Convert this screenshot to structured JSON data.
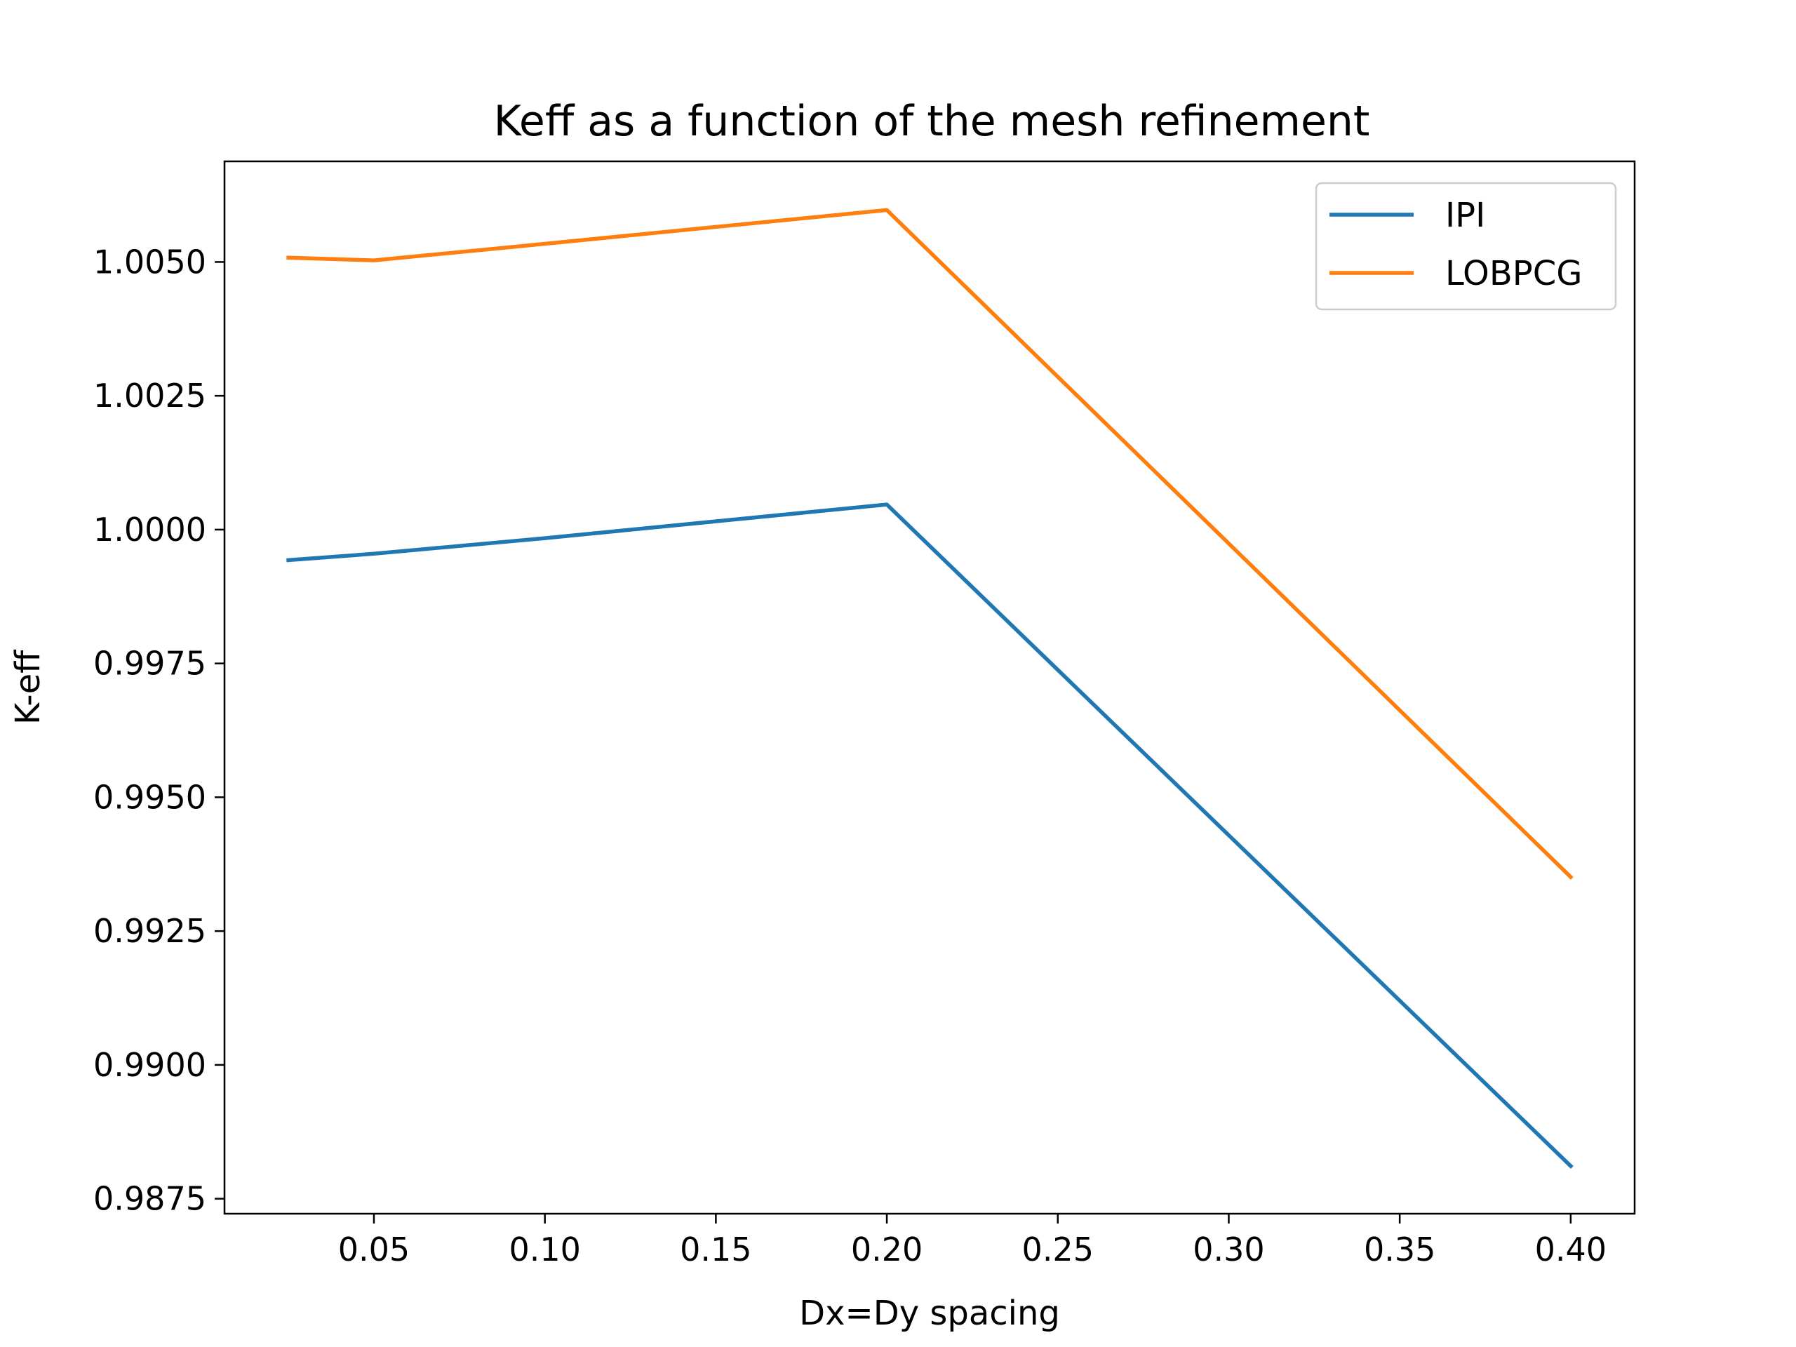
{
  "chart_data": {
    "type": "line",
    "title": "Keff as a function of the mesh refinement",
    "xlabel": "Dx=Dy spacing",
    "ylabel": "K-eff",
    "xlim": [
      0.0063,
      0.4187
    ],
    "ylim": [
      0.98722,
      1.00688
    ],
    "xticks": [
      0.05,
      0.1,
      0.15,
      0.2,
      0.25,
      0.3,
      0.35,
      0.4
    ],
    "xtick_labels": [
      "0.05",
      "0.10",
      "0.15",
      "0.20",
      "0.25",
      "0.30",
      "0.35",
      "0.40"
    ],
    "yticks": [
      0.9875,
      0.99,
      0.9925,
      0.995,
      0.9975,
      1.0,
      1.0025,
      1.005
    ],
    "ytick_labels": [
      "0.9875",
      "0.9900",
      "0.9925",
      "0.9950",
      "0.9975",
      "1.0000",
      "1.0025",
      "1.0050"
    ],
    "grid": false,
    "legend_position": "top-right",
    "series": [
      {
        "name": "IPI",
        "color": "#1f77b4",
        "x": [
          0.025,
          0.05,
          0.1,
          0.2,
          0.4
        ],
        "y": [
          0.99943,
          0.99955,
          0.99984,
          1.00047,
          0.98811
        ]
      },
      {
        "name": "LOBPCG",
        "color": "#ff7f0e",
        "x": [
          0.025,
          0.05,
          0.1,
          0.2,
          0.4
        ],
        "y": [
          1.00508,
          1.00503,
          1.00534,
          1.00597,
          0.99351
        ]
      }
    ]
  }
}
